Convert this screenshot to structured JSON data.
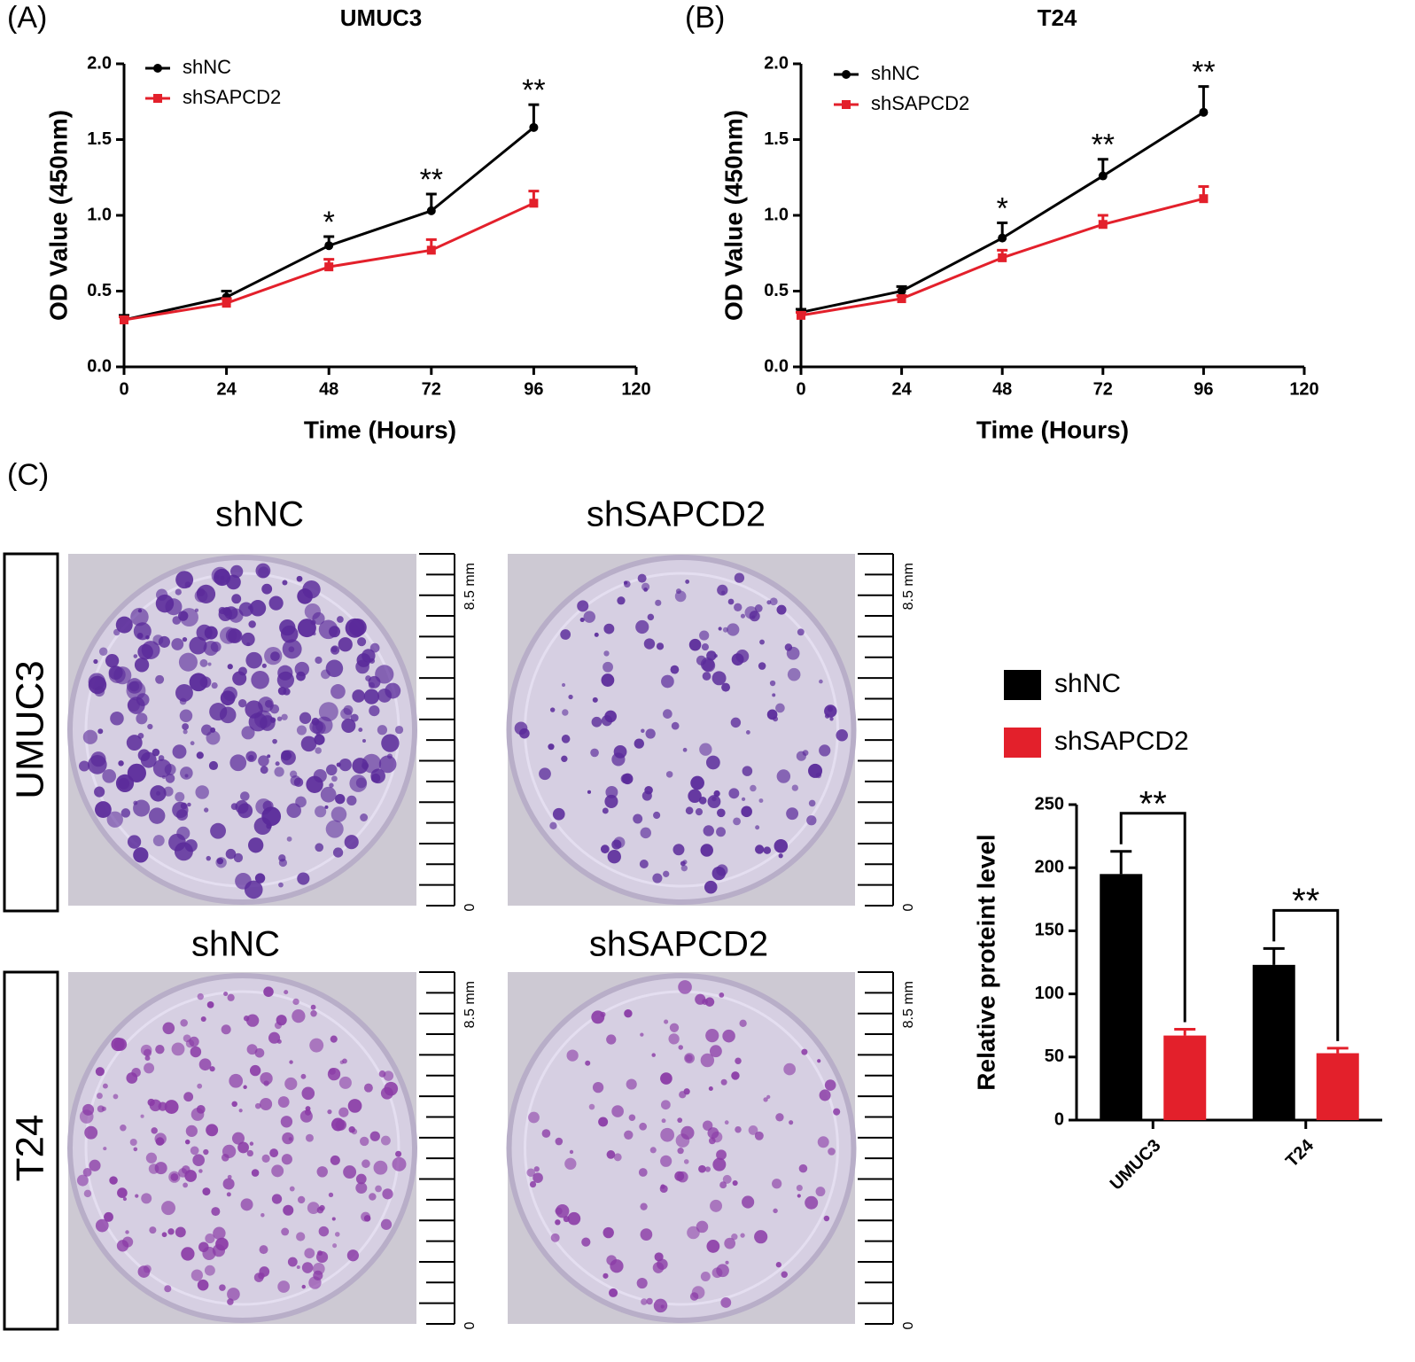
{
  "chart_data": [
    {
      "type": "line",
      "panel_label": "(A)",
      "title": "UMUC3",
      "xlabel": "Time (Hours)",
      "ylabel": "OD Value (450nm)",
      "x": [
        0,
        24,
        48,
        72,
        96
      ],
      "series": [
        {
          "name": "shNC",
          "color": "#000000",
          "values": [
            0.31,
            0.46,
            0.8,
            1.03,
            1.58
          ],
          "errors": [
            0.03,
            0.04,
            0.06,
            0.11,
            0.15
          ]
        },
        {
          "name": "shSAPCD2",
          "color": "#e3202b",
          "values": [
            0.31,
            0.42,
            0.66,
            0.77,
            1.08
          ],
          "errors": [
            0.02,
            0.03,
            0.05,
            0.07,
            0.08
          ]
        }
      ],
      "annotations": [
        null,
        null,
        "*",
        "**",
        "**"
      ],
      "xlim": [
        0,
        120
      ],
      "xticks": [
        0,
        24,
        48,
        72,
        96,
        120
      ],
      "ylim": [
        0,
        2
      ],
      "yticks": [
        {
          "value": 0,
          "label": "0.0"
        },
        0.5,
        {
          "value": 1,
          "label": "1.0"
        },
        1.5,
        {
          "value": 2,
          "label": "2.0"
        }
      ]
    },
    {
      "type": "line",
      "panel_label": "(B)",
      "title": "T24",
      "xlabel": "Time (Hours)",
      "ylabel": "OD Value (450nm)",
      "x": [
        0,
        24,
        48,
        72,
        96
      ],
      "series": [
        {
          "name": "shNC",
          "color": "#000000",
          "values": [
            0.36,
            0.5,
            0.85,
            1.26,
            1.68
          ],
          "errors": [
            0.02,
            0.03,
            0.1,
            0.11,
            0.17
          ]
        },
        {
          "name": "shSAPCD2",
          "color": "#e3202b",
          "values": [
            0.34,
            0.45,
            0.72,
            0.94,
            1.11
          ],
          "errors": [
            0.02,
            0.02,
            0.05,
            0.06,
            0.08
          ]
        }
      ],
      "annotations": [
        null,
        null,
        "*",
        "**",
        "**"
      ],
      "xlim": [
        0,
        120
      ],
      "xticks": [
        0,
        24,
        48,
        72,
        96,
        120
      ],
      "ylim": [
        0,
        2
      ],
      "yticks": [
        {
          "value": 0,
          "label": "0.0"
        },
        0.5,
        {
          "value": 1,
          "label": "1.0"
        },
        1.5,
        {
          "value": 2,
          "label": "2.0"
        }
      ]
    },
    {
      "type": "bar",
      "ylabel": "Relative proteint level",
      "categories": [
        "UMUC3",
        "T24"
      ],
      "series": [
        {
          "name": "shNC",
          "color": "#000000",
          "values": [
            195,
            123
          ],
          "errors": [
            18,
            13
          ]
        },
        {
          "name": "shSAPCD2",
          "color": "#e3202b",
          "values": [
            67,
            53
          ],
          "errors": [
            5,
            4
          ]
        }
      ],
      "annotations": [
        "**",
        "**"
      ],
      "ylim": [
        0,
        250
      ],
      "yticks": [
        0,
        50,
        100,
        150,
        200,
        250
      ]
    }
  ],
  "panel_c": {
    "label": "(C)",
    "rows": [
      {
        "name": "UMUC3",
        "columns": [
          "shNC",
          "shSAPCD2"
        ]
      },
      {
        "name": "T24",
        "columns": [
          "shNC",
          "shSAPCD2"
        ]
      }
    ],
    "scale_top": "8.5 mm",
    "scale_bottom": "0"
  }
}
